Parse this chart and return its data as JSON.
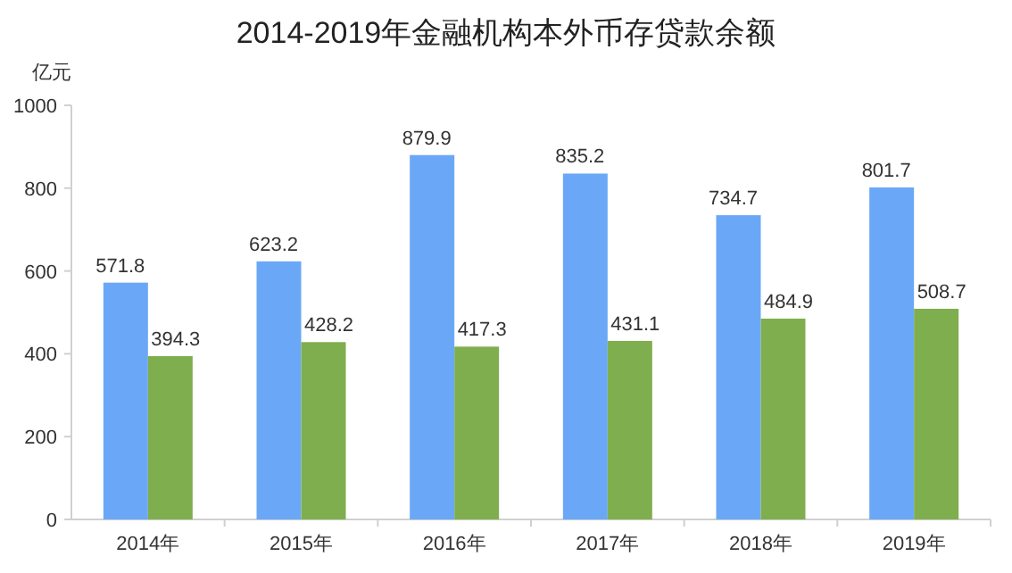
{
  "chart_data": {
    "type": "bar",
    "title": "2014-2019年金融机构本外币存贷款余额",
    "ylabel": "亿元",
    "categories": [
      "2014年",
      "2015年",
      "2016年",
      "2017年",
      "2018年",
      "2019年"
    ],
    "series": [
      {
        "color": "#6aa8f7",
        "values": [
          571.8,
          623.2,
          879.9,
          835.2,
          734.7,
          801.7
        ]
      },
      {
        "color": "#7fae4e",
        "values": [
          394.3,
          428.2,
          417.3,
          431.1,
          484.9,
          508.7
        ]
      }
    ],
    "ylim": [
      0,
      1000
    ],
    "yticks": [
      0,
      200,
      400,
      600,
      800,
      1000
    ],
    "data_labels": true
  }
}
